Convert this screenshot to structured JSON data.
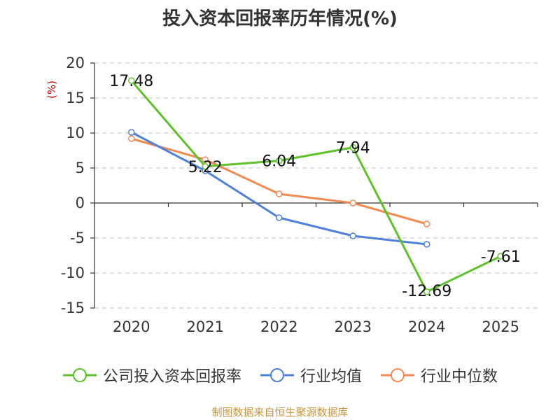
{
  "chart_data": {
    "type": "line",
    "title": "投入资本回报率历年情况(%)",
    "ylabel": "(%)",
    "xlabel": "",
    "categories": [
      "2020",
      "2021",
      "2022",
      "2023",
      "2024",
      "2025"
    ],
    "ylim": [
      -15,
      20
    ],
    "yticks": [
      20,
      15,
      10,
      5,
      0,
      -5,
      -10,
      -15
    ],
    "grid": true,
    "legend_position": "bottom",
    "series": [
      {
        "name": "公司投入资本回报率",
        "color": "#5ec12a",
        "values": [
          17.48,
          5.22,
          6.04,
          7.94,
          -12.69,
          -7.61
        ],
        "labels": [
          "17.48",
          "5.22",
          "6.04",
          "7.94",
          "-12.69",
          "-7.61"
        ]
      },
      {
        "name": "行业均值",
        "color": "#4f81d9",
        "values": [
          10.1,
          4.6,
          -2.1,
          -4.7,
          -5.9,
          null
        ]
      },
      {
        "name": "行业中位数",
        "color": "#f28a52",
        "values": [
          9.2,
          6.2,
          1.3,
          0.0,
          -3.0,
          null
        ]
      }
    ]
  },
  "footer": {
    "source": "制图数据来自恒生聚源数据库"
  }
}
